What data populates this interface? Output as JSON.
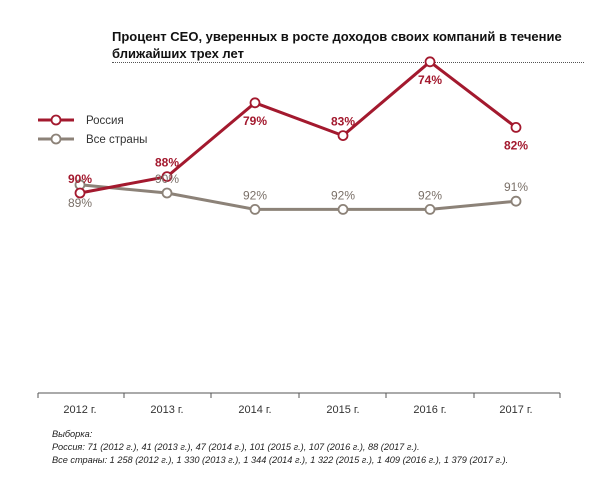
{
  "chart_data": {
    "type": "line",
    "title": "Процент CEO, уверенных в росте доходов своих компаний в течение ближайших трех лет",
    "categories": [
      "2012 г.",
      "2013 г.",
      "2014 г.",
      "2015 г.",
      "2016 г.",
      "2017 г."
    ],
    "series": [
      {
        "name": "Россия",
        "values": [
          90,
          88,
          79,
          83,
          74,
          82
        ],
        "color": "#a3192e",
        "labels": [
          "90%",
          "88%",
          "79%",
          "83%",
          "74%",
          "82%"
        ]
      },
      {
        "name": "Все страны",
        "values": [
          89,
          90,
          92,
          92,
          92,
          91
        ],
        "color": "#8c8278",
        "labels": [
          "89%",
          "90%",
          "92%",
          "92%",
          "92%",
          "91%"
        ]
      }
    ],
    "grid": false,
    "legend": "top-left"
  },
  "notes": {
    "heading": "Выборка:",
    "russia": "Россия: 71 (2012 г.), 41 (2013 г.), 47 (2014 г.), 101 (2015 г.), 107 (2016 г.), 88 (2017 г.).",
    "all": "Все страны: 1 258 (2012 г.), 1 330 (2013 г.), 1 344 (2014 г.), 1 322 (2015 г.), 1 409 (2016 г.), 1 379 (2017 г.)."
  }
}
